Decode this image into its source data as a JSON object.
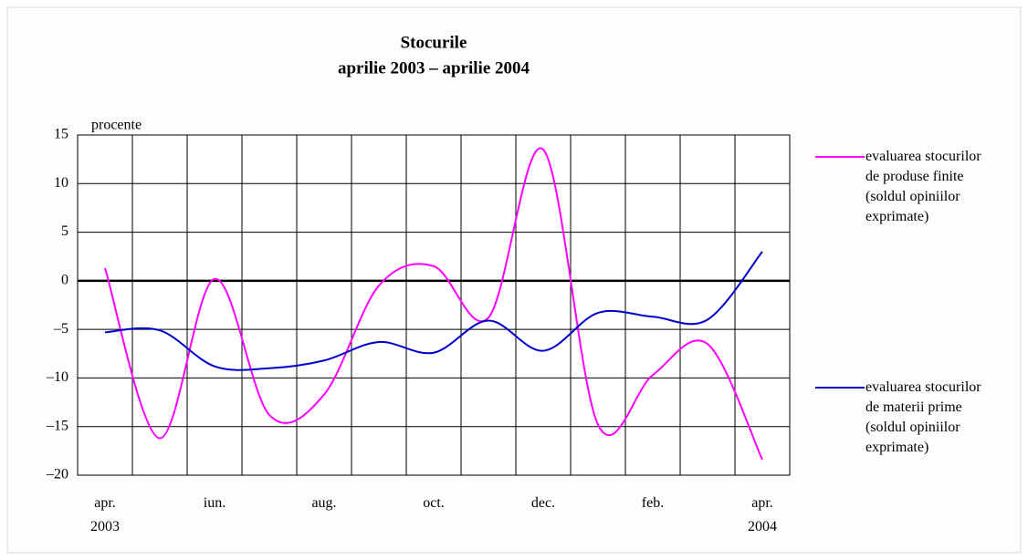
{
  "chart_data": {
    "type": "line",
    "title": "Stocurile",
    "subtitle": "aprilie 2003 – aprilie 2004",
    "y_label": "procente",
    "categories": [
      "apr. 2003",
      null,
      "iun.",
      null,
      "aug.",
      null,
      "oct.",
      null,
      "dec.",
      null,
      "feb.",
      null,
      "apr. 2004"
    ],
    "series": [
      {
        "name": "evaluarea stocurilor de produse finite (soldul opiniilor exprimate)",
        "color": "#ff00ff",
        "values": [
          1.3,
          -16.2,
          0.2,
          -13.8,
          -11.7,
          -0.5,
          1.5,
          -3.8,
          13.5,
          -14.8,
          -9.7,
          -6.5,
          -18.4
        ]
      },
      {
        "name": "evaluarea stocurilor de materii prime (soldul opiniilor exprimate)",
        "color": "#0000cc",
        "values": [
          -5.3,
          -5.1,
          -8.8,
          -9.0,
          -8.2,
          -6.3,
          -7.4,
          -4.1,
          -7.2,
          -3.3,
          -3.7,
          -4.0,
          3.0
        ]
      }
    ],
    "ylim": [
      -20,
      15
    ],
    "yticks": [
      {
        "value": -20,
        "label": "–20"
      },
      {
        "value": -15,
        "label": "–15"
      },
      {
        "value": -10,
        "label": "–10"
      },
      {
        "value": -5,
        "label": "–5"
      },
      0,
      5,
      10,
      15
    ],
    "grid": true,
    "smooth": true
  }
}
